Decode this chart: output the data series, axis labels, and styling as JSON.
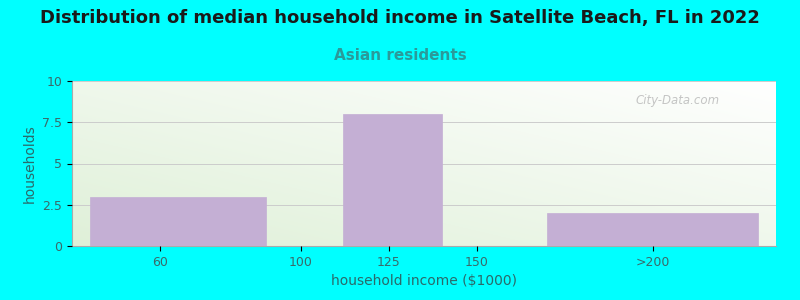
{
  "title": "Distribution of median household income in Satellite Beach, FL in 2022",
  "subtitle": "Asian residents",
  "xlabel": "household income ($1000)",
  "ylabel": "households",
  "background_color": "#00FFFF",
  "bar_color": "#c4afd4",
  "title_color": "#1a1a1a",
  "subtitle_color": "#2a9a9a",
  "axis_label_color": "#2a6a6a",
  "tick_label_color": "#3a6a6a",
  "ylim": [
    0,
    10
  ],
  "yticks": [
    0,
    2.5,
    5,
    7.5,
    10
  ],
  "bars": [
    {
      "x_left": 40,
      "x_right": 90,
      "height": 3
    },
    {
      "x_left": 112,
      "x_right": 140,
      "height": 8
    },
    {
      "x_left": 170,
      "x_right": 230,
      "height": 2
    }
  ],
  "xtick_positions": [
    60,
    100,
    125,
    150,
    200
  ],
  "xtick_labels": [
    "60",
    "100",
    "125",
    "150",
    ">200"
  ],
  "watermark": "City-Data.com",
  "grid_color": "#cccccc",
  "title_fontsize": 13,
  "subtitle_fontsize": 11,
  "axis_label_fontsize": 10,
  "tick_fontsize": 9,
  "xlim": [
    35,
    235
  ]
}
